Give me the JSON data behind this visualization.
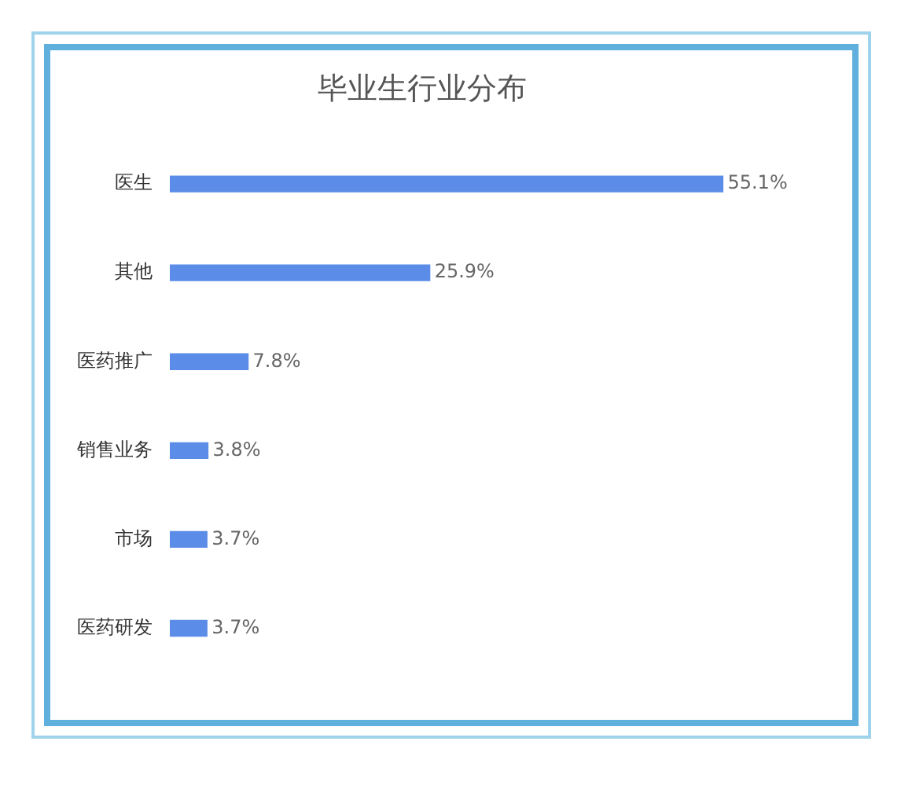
{
  "chart_data": {
    "type": "bar",
    "orientation": "horizontal",
    "title": "毕业生行业分布",
    "categories": [
      "医生",
      "其他",
      "医药推广",
      "销售业务",
      "市场",
      "医药研发"
    ],
    "values": [
      55.1,
      25.9,
      7.8,
      3.8,
      3.7,
      3.7
    ],
    "value_labels": [
      "55.1%",
      "25.9%",
      "7.8%",
      "3.8%",
      "3.7%",
      "3.7%"
    ],
    "color": "#5b8de8"
  }
}
